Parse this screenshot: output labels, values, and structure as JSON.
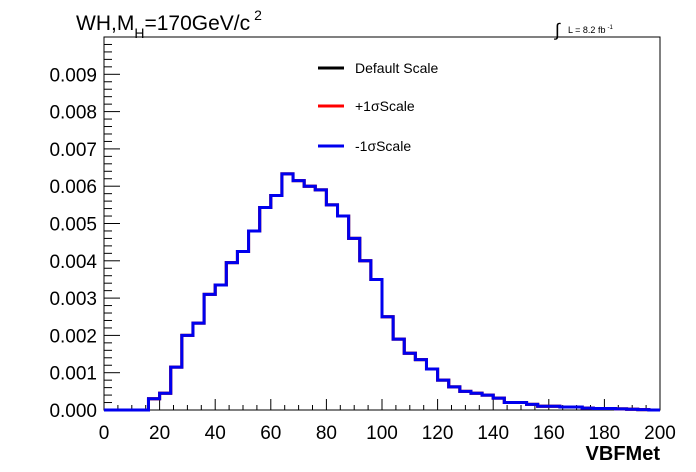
{
  "chart_data": {
    "type": "line",
    "title": {
      "prefix": "WH,M",
      "subscript": "H",
      "suffix": "=170GeV/c",
      "superscript": "2"
    },
    "lumi": {
      "integral": "∫",
      "text": "L = 8.2 fb",
      "superscript": "-1"
    },
    "xlabel": "VBFMet",
    "ylabel": "",
    "xlim": [
      0,
      200
    ],
    "ylim": [
      0,
      0.01
    ],
    "x_ticks": [
      "0",
      "20",
      "40",
      "60",
      "80",
      "100",
      "120",
      "140",
      "160",
      "180",
      "200"
    ],
    "y_ticks": [
      "0.000",
      "0.001",
      "0.002",
      "0.003",
      "0.004",
      "0.005",
      "0.006",
      "0.007",
      "0.008",
      "0.009"
    ],
    "bin_edges": [
      0,
      4,
      8,
      12,
      16,
      20,
      24,
      28,
      32,
      36,
      40,
      44,
      48,
      52,
      56,
      60,
      64,
      68,
      72,
      76,
      80,
      84,
      88,
      92,
      96,
      100,
      104,
      108,
      112,
      116,
      120,
      124,
      128,
      132,
      136,
      140,
      144,
      148,
      152,
      156,
      160,
      164,
      168,
      172,
      176,
      180,
      184,
      188,
      192,
      196,
      200
    ],
    "series": [
      {
        "name": "Default Scale",
        "color": "#000000",
        "values": [
          0,
          0,
          0,
          0,
          0.0003,
          0.00045,
          0.00115,
          0.002,
          0.00233,
          0.0031,
          0.00335,
          0.00395,
          0.00425,
          0.0048,
          0.00543,
          0.00575,
          0.00633,
          0.00615,
          0.006,
          0.0059,
          0.0055,
          0.0052,
          0.0046,
          0.004,
          0.0035,
          0.0025,
          0.0019,
          0.00152,
          0.00135,
          0.0011,
          0.0008,
          0.00062,
          0.0005,
          0.00045,
          0.0004,
          0.00032,
          0.0002,
          0.0002,
          0.00015,
          0.0001,
          0.0001,
          8e-05,
          8e-05,
          5e-05,
          4e-05,
          4e-05,
          3e-05,
          2e-05,
          1e-05,
          0.0
        ]
      },
      {
        "name": "+1σScale",
        "color": "#ff0000",
        "values": [
          0,
          0,
          0,
          0,
          0.0003,
          0.00045,
          0.00115,
          0.002,
          0.00233,
          0.0031,
          0.00335,
          0.00395,
          0.00425,
          0.0048,
          0.00543,
          0.00575,
          0.00633,
          0.00615,
          0.006,
          0.0059,
          0.0055,
          0.0052,
          0.0046,
          0.004,
          0.0035,
          0.0025,
          0.0019,
          0.00152,
          0.00135,
          0.0011,
          0.0008,
          0.00062,
          0.0005,
          0.00045,
          0.0004,
          0.00032,
          0.0002,
          0.0002,
          0.00015,
          0.0001,
          0.0001,
          8e-05,
          8e-05,
          5e-05,
          4e-05,
          4e-05,
          3e-05,
          2e-05,
          1e-05,
          0.0
        ]
      },
      {
        "name": "-1σScale",
        "color": "#0000ee",
        "values": [
          0,
          0,
          0,
          0,
          0.0003,
          0.00045,
          0.00115,
          0.002,
          0.00233,
          0.0031,
          0.00335,
          0.00395,
          0.00425,
          0.0048,
          0.00543,
          0.00575,
          0.00633,
          0.00615,
          0.006,
          0.0059,
          0.0055,
          0.0052,
          0.0046,
          0.004,
          0.0035,
          0.0025,
          0.0019,
          0.00152,
          0.00135,
          0.0011,
          0.0008,
          0.00062,
          0.0005,
          0.00045,
          0.0004,
          0.00032,
          0.0002,
          0.0002,
          0.00015,
          0.0001,
          0.0001,
          8e-05,
          8e-05,
          5e-05,
          4e-05,
          4e-05,
          3e-05,
          2e-05,
          1e-05,
          0.0
        ]
      }
    ],
    "legend": {
      "placement": "top-center",
      "entries": [
        "Default Scale",
        "+1σScale",
        "-1σScale"
      ]
    },
    "grid": false
  }
}
